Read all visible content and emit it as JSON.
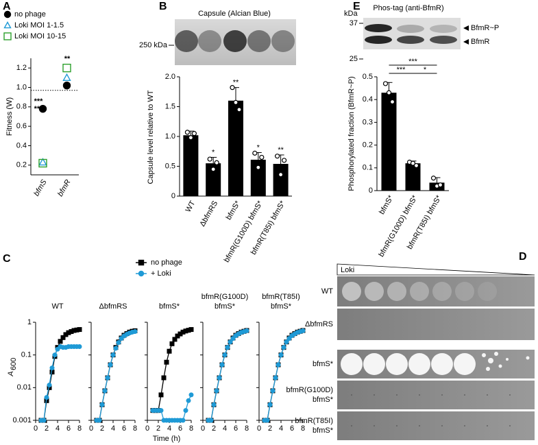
{
  "chart_data": [
    {
      "panel": "A",
      "type": "scatter",
      "ylabel": "Fitness (W)",
      "categories": [
        "bfmS",
        "bfmR"
      ],
      "series": [
        {
          "name": "no phage",
          "color": "#000000",
          "marker": "circle",
          "values": [
            0.78,
            1.02
          ]
        },
        {
          "name": "Loki MOI 1-1.5",
          "color": "#1f9ad6",
          "marker": "triangle",
          "values": [
            0.23,
            1.1
          ]
        },
        {
          "name": "Loki MOI 10-15",
          "color": "#2ca02c",
          "marker": "square",
          "values": [
            0.22,
            1.2
          ]
        }
      ],
      "ylim": [
        0.1,
        1.3
      ],
      "yticks": [
        0.2,
        0.4,
        0.6,
        0.8,
        {
          "value": 1,
          "label": "1.0"
        },
        1.2
      ],
      "reference_line": 0.97,
      "annotations": [
        {
          "text": "***",
          "color": "#1f9ad6",
          "category": 0
        },
        {
          "text": "***",
          "color": "#2ca02c",
          "category": 0
        },
        {
          "text": "**",
          "color": "#2ca02c",
          "category": 1
        }
      ]
    },
    {
      "panel": "B",
      "type": "bar",
      "title": "Capsule (Alcian Blue)",
      "blot_marker": "250 kDa",
      "ylabel": "Capsule level relative to WT",
      "categories": [
        "WT",
        "ΔbfmRS",
        "bfmS*",
        "bfmR(G100D) bfmS*",
        "bfmR(T85I) bfmS*"
      ],
      "values": [
        1.02,
        0.55,
        1.6,
        0.61,
        0.54
      ],
      "errors": [
        0.07,
        0.1,
        0.22,
        0.12,
        0.15
      ],
      "points": [
        [
          1.07,
          0.98,
          1.05
        ],
        [
          0.62,
          0.45,
          0.56
        ],
        [
          1.82,
          1.57,
          1.45
        ],
        [
          0.72,
          0.48,
          0.65
        ],
        [
          0.67,
          0.36,
          0.6
        ]
      ],
      "significance": [
        null,
        "*",
        "**",
        "*",
        "**"
      ],
      "color": "#000000",
      "ylim": [
        0,
        2
      ],
      "yticks": [
        0,
        0.5,
        {
          "value": 1,
          "label": "1.0"
        },
        1.5,
        {
          "value": 2,
          "label": "2.0"
        }
      ]
    },
    {
      "panel": "C",
      "type": "line",
      "ylabel": "A",
      "ylabel_subscript": "600",
      "xlabel": "Time (h)",
      "log_y": true,
      "xlim": [
        0,
        8
      ],
      "xticks": [
        0,
        2,
        4,
        6,
        8
      ],
      "ylim": [
        0.001,
        1
      ],
      "yticks": [
        0.001,
        0.01,
        0.1,
        1
      ],
      "legend": [
        {
          "name": "no phage",
          "color": "#000000",
          "marker": "square"
        },
        {
          "name": "+ Loki",
          "color": "#1f9ad6",
          "marker": "circle"
        }
      ],
      "x": [
        1,
        1.5,
        2,
        2.5,
        3,
        3.5,
        4,
        4.5,
        5,
        5.5,
        6,
        6.5,
        7,
        7.5,
        8
      ],
      "panels": [
        {
          "title": [
            "WT"
          ],
          "series": [
            {
              "values": [
                0.001,
                0.001,
                0.004,
                0.01,
                0.03,
                0.09,
                0.17,
                0.26,
                0.34,
                0.42,
                0.48,
                0.52,
                0.56,
                0.58,
                0.6
              ]
            },
            {
              "values": [
                0.001,
                0.001,
                0.005,
                0.012,
                0.04,
                0.1,
                0.15,
                0.18,
                0.17,
                0.17,
                0.18,
                0.18,
                0.18,
                0.18,
                0.18
              ]
            }
          ]
        },
        {
          "title": [
            "ΔbfmRS"
          ],
          "series": [
            {
              "values": [
                0.001,
                0.001,
                0.003,
                0.008,
                0.02,
                0.05,
                0.1,
                0.17,
                0.25,
                0.33,
                0.4,
                0.45,
                0.5,
                0.53,
                0.55
              ]
            },
            {
              "values": [
                0.001,
                0.001,
                0.003,
                0.008,
                0.02,
                0.05,
                0.1,
                0.16,
                0.24,
                0.32,
                0.38,
                0.43,
                0.47,
                0.5,
                0.52
              ]
            }
          ]
        },
        {
          "title": [
            "bfmS*"
          ],
          "series": [
            {
              "values": [
                0.002,
                0.002,
                0.002,
                0.006,
                0.02,
                0.06,
                0.13,
                0.22,
                0.3,
                0.38,
                0.44,
                0.5,
                0.54,
                0.57,
                0.6
              ]
            },
            {
              "values": [
                0.002,
                0.002,
                0.002,
                0.002,
                0.001,
                0.001,
                0.001,
                0.001,
                0.001,
                0.001,
                0.001,
                0.001,
                0.002,
                0.004,
                0.006
              ]
            }
          ]
        },
        {
          "title": [
            "bfmR(G100D)",
            "bfmS*"
          ],
          "series": [
            {
              "values": [
                0.001,
                0.001,
                0.003,
                0.008,
                0.02,
                0.05,
                0.1,
                0.17,
                0.25,
                0.33,
                0.4,
                0.45,
                0.5,
                0.53,
                0.56
              ]
            },
            {
              "values": [
                0.001,
                0.001,
                0.003,
                0.008,
                0.02,
                0.05,
                0.1,
                0.17,
                0.25,
                0.32,
                0.39,
                0.44,
                0.49,
                0.52,
                0.55
              ]
            }
          ]
        },
        {
          "title": [
            "bfmR(T85I)",
            "bfmS*"
          ],
          "series": [
            {
              "values": [
                0.001,
                0.001,
                0.003,
                0.008,
                0.02,
                0.05,
                0.1,
                0.17,
                0.25,
                0.33,
                0.4,
                0.45,
                0.5,
                0.53,
                0.56
              ]
            },
            {
              "values": [
                0.001,
                0.001,
                0.003,
                0.008,
                0.02,
                0.05,
                0.1,
                0.17,
                0.25,
                0.32,
                0.39,
                0.44,
                0.49,
                0.52,
                0.55
              ]
            }
          ]
        }
      ]
    },
    {
      "panel": "E",
      "type": "bar",
      "title": "Phos-tag (anti-BfmR)",
      "blot_unit": "kDa",
      "blot_markers": [
        37,
        25
      ],
      "bands": [
        "BfmR~P",
        "BfmR"
      ],
      "ylabel": "Phosphorylated fraction (BfmR~P)",
      "categories": [
        "bfmS*",
        "bfmR(G100D) bfmS*",
        "bfmR(T85I) bfmS*"
      ],
      "values": [
        0.43,
        0.12,
        0.035
      ],
      "errors": [
        0.045,
        0.01,
        0.022
      ],
      "points": [
        [
          0.47,
          0.43,
          0.39
        ],
        [
          0.125,
          0.12,
          0.11
        ],
        [
          0.055,
          0.02,
          0.025
        ]
      ],
      "comparisons": [
        {
          "from": 0,
          "to": 2,
          "label": "***"
        },
        {
          "from": 0,
          "to": 1,
          "label": "***"
        },
        {
          "from": 1,
          "to": 2,
          "label": "*"
        }
      ],
      "color": "#000000",
      "ylim": [
        0,
        0.5
      ],
      "yticks": [
        0,
        0.1,
        0.2,
        0.3,
        0.4,
        0.5
      ]
    }
  ],
  "plaque_assay": {
    "panel": "D",
    "gradient_label": "Loki",
    "strains": [
      [
        "WT"
      ],
      [
        "ΔbfmRS"
      ],
      [
        "bfmS*"
      ],
      [
        "bfmR(G100D)",
        "bfmS*"
      ],
      [
        "bfmR(T85I)",
        "bfmS*"
      ]
    ]
  }
}
